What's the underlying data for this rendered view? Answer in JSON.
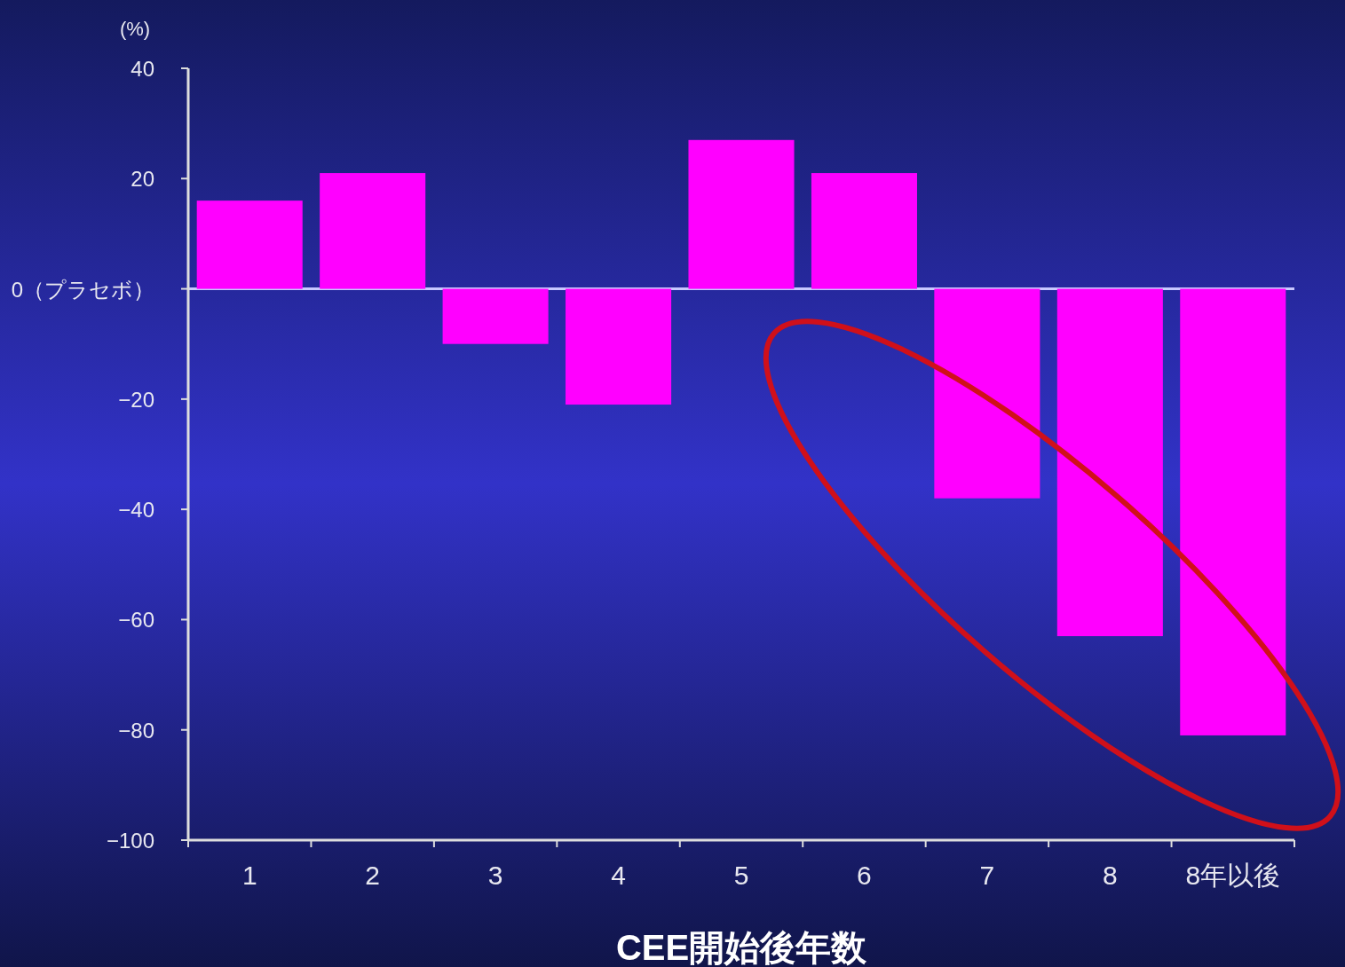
{
  "chart_data": {
    "type": "bar",
    "ylabel": "(%)",
    "xlabel": "CEE開始後年数",
    "categories": [
      "1",
      "2",
      "3",
      "4",
      "5",
      "6",
      "7",
      "8",
      "8年以後"
    ],
    "values": [
      16,
      21,
      -10,
      -21,
      27,
      21,
      -38,
      -63,
      -81
    ],
    "color": "#ff00ff",
    "ref_lines": [
      {
        "axis": "y",
        "value": 0,
        "color": "#c8c8ff"
      }
    ],
    "ylim": [
      -100,
      40
    ],
    "yticks": [
      40,
      20,
      {
        "value": 0,
        "label": "0（プラセボ）"
      },
      -20,
      -40,
      -60,
      -80,
      -100
    ]
  }
}
